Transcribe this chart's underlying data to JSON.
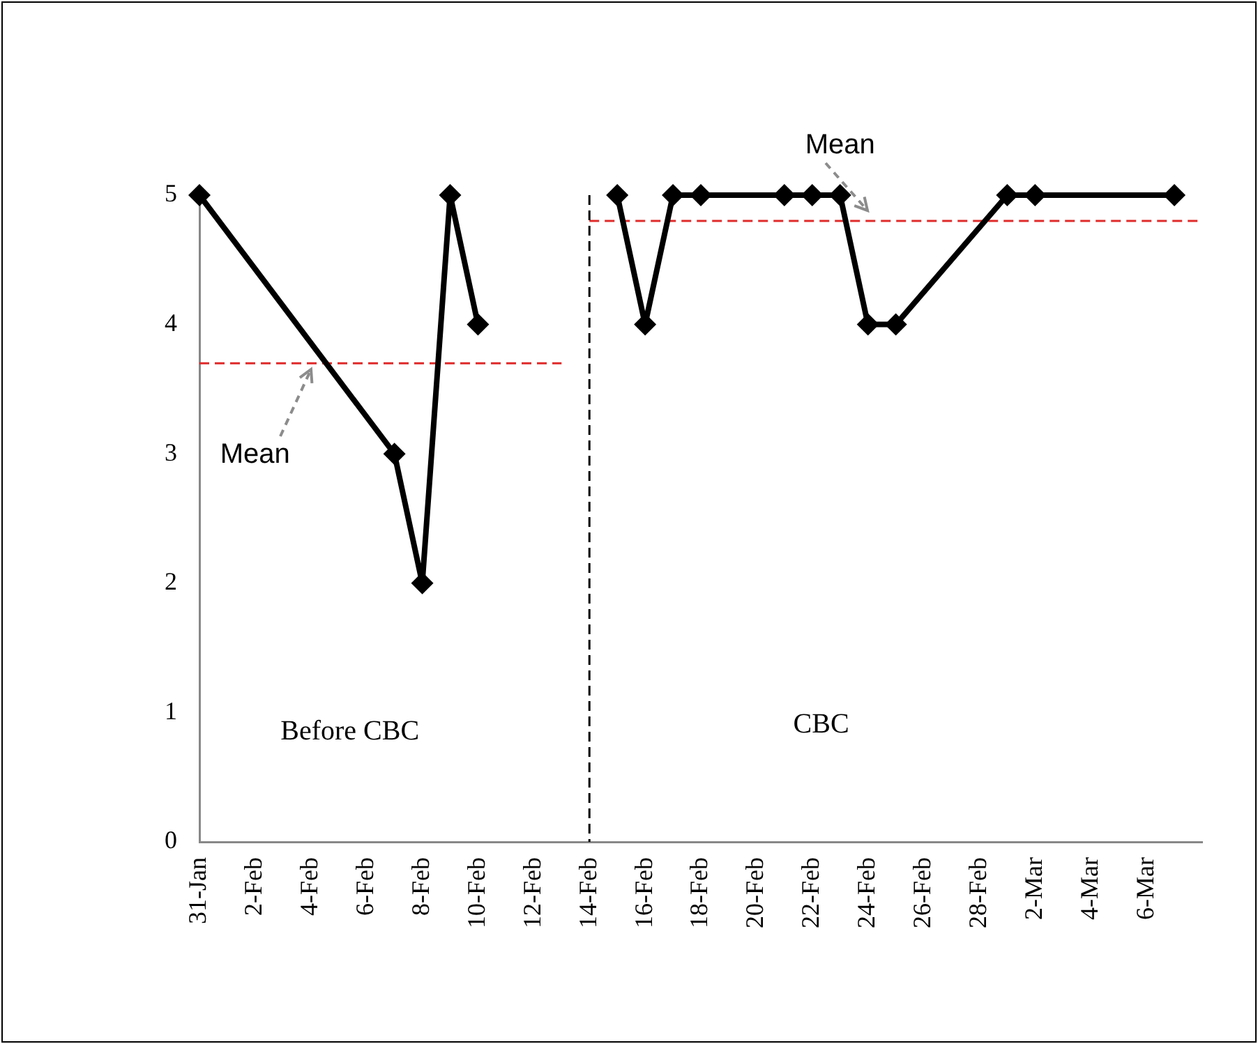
{
  "chart_data": {
    "type": "line",
    "marker": "diamond",
    "line_style": "solid",
    "grid": false,
    "legend": false,
    "xlim": [
      "--01-31",
      "--03-08"
    ],
    "xticks": [
      {
        "value": "--01-31",
        "label": "31-Jan"
      },
      {
        "value": "--02-02",
        "label": "2-Feb"
      },
      {
        "value": "--02-04",
        "label": "4-Feb"
      },
      {
        "value": "--02-06",
        "label": "6-Feb"
      },
      {
        "value": "--02-08",
        "label": "8-Feb"
      },
      {
        "value": "--02-10",
        "label": "10-Feb"
      },
      {
        "value": "--02-12",
        "label": "12-Feb"
      },
      {
        "value": "--02-14",
        "label": "14-Feb"
      },
      {
        "value": "--02-16",
        "label": "16-Feb"
      },
      {
        "value": "--02-18",
        "label": "18-Feb"
      },
      {
        "value": "--02-20",
        "label": "20-Feb"
      },
      {
        "value": "--02-22",
        "label": "22-Feb"
      },
      {
        "value": "--02-24",
        "label": "24-Feb"
      },
      {
        "value": "--02-26",
        "label": "26-Feb"
      },
      {
        "value": "--02-28",
        "label": "28-Feb"
      },
      {
        "value": "--03-02",
        "label": "2-Mar"
      },
      {
        "value": "--03-04",
        "label": "4-Mar"
      },
      {
        "value": "--03-06",
        "label": "6-Mar"
      }
    ],
    "ylim": [
      0,
      5
    ],
    "yticks": [
      0,
      1,
      2,
      3,
      4,
      5
    ],
    "series": [
      {
        "color": "#000000",
        "x": [
          "--01-31",
          "--02-07",
          "--02-08",
          "--02-09",
          "--02-10"
        ],
        "values": [
          5,
          3,
          2,
          5,
          4
        ]
      },
      {
        "color": "#000000",
        "x": [
          "--02-15",
          "--02-16",
          "--02-17",
          "--02-18",
          "--02-21",
          "--02-22",
          "--02-23",
          "--02-24",
          "--02-25",
          "--03-01",
          "--03-02",
          "--03-07"
        ],
        "values": [
          5,
          4,
          5,
          5,
          5,
          5,
          5,
          4,
          4,
          5,
          5,
          5
        ]
      },
      {
        "color": "#e02a2a",
        "marker": "none",
        "line_style": "dashed",
        "x": [
          "--01-31",
          "--02-13"
        ],
        "values": [
          3.7,
          3.7
        ]
      },
      {
        "color": "#e02a2a",
        "marker": "none",
        "line_style": "dashed",
        "x": [
          "--02-14",
          "--03-08"
        ],
        "values": [
          4.8,
          4.8
        ]
      }
    ],
    "ref_lines": [
      {
        "axis": "x",
        "value": "--02-14",
        "color": "#000000",
        "line_style": "dashed"
      }
    ],
    "annotations": [
      {
        "text": "Mean",
        "x": "--02-04",
        "y": 3.7
      },
      {
        "text": "Mean",
        "x": "--02-24",
        "y": 4.8
      },
      "Before CBC",
      "CBC"
    ]
  }
}
